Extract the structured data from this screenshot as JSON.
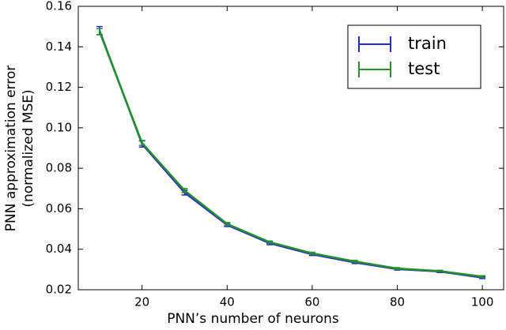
{
  "chart_data": {
    "type": "line",
    "xlabel": "PNN’s number of neurons",
    "ylabel": [
      "PNN approximation error",
      "(normalized MSE)"
    ],
    "x": [
      10,
      20,
      30,
      40,
      50,
      60,
      70,
      80,
      90,
      100
    ],
    "series": [
      {
        "name": "train",
        "color": "#2a2ad4",
        "values": [
          0.148,
          0.092,
          0.068,
          0.052,
          0.043,
          0.0375,
          0.0335,
          0.0302,
          0.029,
          0.026
        ],
        "errors": [
          0.002,
          0.0015,
          0.0012,
          0.0008,
          0.0007,
          0.0006,
          0.0006,
          0.0005,
          0.0005,
          0.0005
        ]
      },
      {
        "name": "test",
        "color": "#23902a",
        "values": [
          0.1475,
          0.0925,
          0.069,
          0.0525,
          0.0435,
          0.038,
          0.034,
          0.0305,
          0.0292,
          0.0265
        ],
        "errors": [
          0.0015,
          0.0012,
          0.001,
          0.0007,
          0.0006,
          0.0005,
          0.0005,
          0.0004,
          0.0004,
          0.0004
        ]
      }
    ],
    "xlim": [
      5,
      105
    ],
    "xticks": [
      20,
      40,
      60,
      80,
      100
    ],
    "ylim": [
      0.02,
      0.16
    ],
    "yticks": [
      {
        "value": 0.02,
        "label": "0.02"
      },
      {
        "value": 0.04,
        "label": "0.04"
      },
      {
        "value": 0.06,
        "label": "0.06"
      },
      {
        "value": 0.08,
        "label": "0.08"
      },
      {
        "value": 0.1,
        "label": "0.10"
      },
      {
        "value": 0.12,
        "label": "0.12"
      },
      {
        "value": 0.14,
        "label": "0.14"
      },
      {
        "value": 0.16,
        "label": "0.16"
      }
    ],
    "legend": "upper right"
  }
}
